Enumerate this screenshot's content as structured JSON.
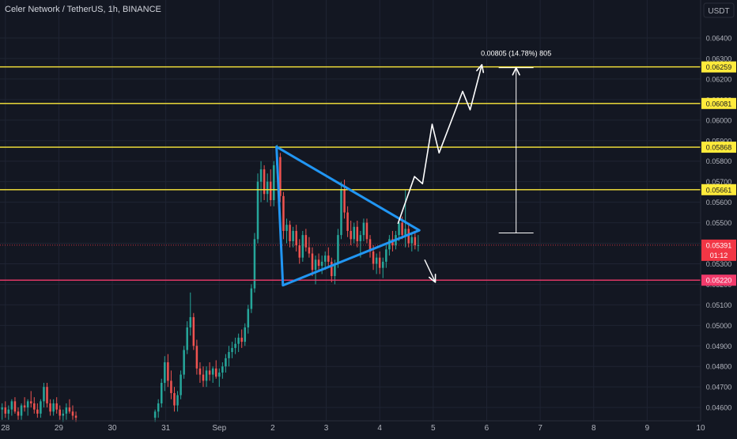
{
  "header": {
    "title": "Celer Network / TetherUS, 1h, BINANCE"
  },
  "chart_data": {
    "type": "candlestick",
    "currency_label": "USDT",
    "y_axis": {
      "ticks": [
        "0.06400",
        "0.06300",
        "0.06200",
        "0.06100",
        "0.06000",
        "0.05900",
        "0.05800",
        "0.05700",
        "0.05600",
        "0.05500",
        "0.05400",
        "0.05300",
        "0.05200",
        "0.05100",
        "0.05000",
        "0.04900",
        "0.04800",
        "0.04700",
        "0.04600"
      ],
      "tick_values": [
        0.064,
        0.063,
        0.062,
        0.061,
        0.06,
        0.059,
        0.058,
        0.057,
        0.056,
        0.055,
        0.054,
        0.053,
        0.052,
        0.051,
        0.05,
        0.049,
        0.048,
        0.047,
        0.046
      ],
      "range": [
        0.04535,
        0.06585
      ]
    },
    "x_axis": {
      "ticks": [
        "28",
        "29",
        "30",
        "31",
        "Sep",
        "2",
        "3",
        "4",
        "5",
        "6",
        "7",
        "8",
        "9",
        "10"
      ],
      "tick_positions": [
        -4,
        -3,
        -2,
        -1,
        0,
        1,
        2,
        3,
        4,
        5,
        6,
        7,
        8,
        9
      ],
      "range": [
        -4.1,
        9.0
      ]
    },
    "levels": [
      {
        "label": "0.06259",
        "value": 0.06259,
        "color": "#ffeb3b"
      },
      {
        "label": "0.06081",
        "value": 0.06081,
        "color": "#ffeb3b"
      },
      {
        "label": "0.05868",
        "value": 0.05868,
        "color": "#ffeb3b"
      },
      {
        "label": "0.05661",
        "value": 0.05661,
        "color": "#ffeb3b"
      },
      {
        "label": "0.05220",
        "value": 0.0522,
        "color": "#f23a6b"
      }
    ],
    "current_price": {
      "label": "0.05391",
      "value": 0.05391,
      "countdown": "01:12",
      "color": "#f23645"
    },
    "triangle": {
      "color": "#2196f3",
      "points": [
        [
          1.07,
          0.0587
        ],
        [
          3.74,
          0.05463
        ],
        [
          1.19,
          0.05195
        ]
      ]
    },
    "projection_up": {
      "color": "#ffffff",
      "points": [
        [
          3.34,
          0.05495
        ],
        [
          3.65,
          0.05725
        ],
        [
          3.8,
          0.0569
        ],
        [
          3.98,
          0.0598
        ],
        [
          4.11,
          0.0584
        ],
        [
          4.55,
          0.0614
        ],
        [
          4.69,
          0.0605
        ],
        [
          4.91,
          0.0627
        ]
      ]
    },
    "projection_down": {
      "color": "#ffffff",
      "points": [
        [
          3.84,
          0.0532
        ],
        [
          4.04,
          0.0521
        ]
      ]
    },
    "measure": {
      "label": "0.00805 (14.78%) 805",
      "x": 5.55,
      "from": 0.0545,
      "to": 0.06255
    },
    "colors": {
      "up": "#26a69a",
      "down": "#ef5350",
      "background": "#131722",
      "grid": "#1f2433",
      "text": "#d1d4dc"
    },
    "candles": [
      {
        "t": -4.06,
        "o": 0.0459,
        "h": 0.0462,
        "l": 0.0454,
        "c": 0.046
      },
      {
        "t": -4.0,
        "o": 0.046,
        "h": 0.0463,
        "l": 0.0455,
        "c": 0.0457
      },
      {
        "t": -3.94,
        "o": 0.0457,
        "h": 0.0461,
        "l": 0.0454,
        "c": 0.0459
      },
      {
        "t": -3.88,
        "o": 0.0459,
        "h": 0.0464,
        "l": 0.0456,
        "c": 0.0463
      },
      {
        "t": -3.82,
        "o": 0.0463,
        "h": 0.0465,
        "l": 0.0457,
        "c": 0.0458
      },
      {
        "t": -3.76,
        "o": 0.0458,
        "h": 0.046,
        "l": 0.0454,
        "c": 0.0456
      },
      {
        "t": -3.7,
        "o": 0.0456,
        "h": 0.0462,
        "l": 0.0454,
        "c": 0.0461
      },
      {
        "t": -3.64,
        "o": 0.0461,
        "h": 0.0465,
        "l": 0.0458,
        "c": 0.046
      },
      {
        "t": -3.58,
        "o": 0.046,
        "h": 0.0464,
        "l": 0.0456,
        "c": 0.0463
      },
      {
        "t": -3.52,
        "o": 0.0463,
        "h": 0.0468,
        "l": 0.046,
        "c": 0.0462
      },
      {
        "t": -3.46,
        "o": 0.0462,
        "h": 0.0465,
        "l": 0.0457,
        "c": 0.0459
      },
      {
        "t": -3.4,
        "o": 0.0459,
        "h": 0.0462,
        "l": 0.0455,
        "c": 0.0457
      },
      {
        "t": -3.34,
        "o": 0.0457,
        "h": 0.0464,
        "l": 0.0455,
        "c": 0.0463
      },
      {
        "t": -3.28,
        "o": 0.0463,
        "h": 0.0472,
        "l": 0.046,
        "c": 0.047
      },
      {
        "t": -3.22,
        "o": 0.047,
        "h": 0.0472,
        "l": 0.046,
        "c": 0.0462
      },
      {
        "t": -3.16,
        "o": 0.0462,
        "h": 0.0464,
        "l": 0.0456,
        "c": 0.0458
      },
      {
        "t": -3.1,
        "o": 0.0458,
        "h": 0.0464,
        "l": 0.0456,
        "c": 0.0462
      },
      {
        "t": -3.04,
        "o": 0.0462,
        "h": 0.0465,
        "l": 0.0457,
        "c": 0.0459
      },
      {
        "t": -2.98,
        "o": 0.0459,
        "h": 0.0461,
        "l": 0.0454,
        "c": 0.0456
      },
      {
        "t": -2.92,
        "o": 0.0456,
        "h": 0.0459,
        "l": 0.0453,
        "c": 0.0457
      },
      {
        "t": -2.86,
        "o": 0.0457,
        "h": 0.0462,
        "l": 0.0454,
        "c": 0.046
      },
      {
        "t": -2.8,
        "o": 0.046,
        "h": 0.0464,
        "l": 0.0457,
        "c": 0.0458
      },
      {
        "t": -2.74,
        "o": 0.0458,
        "h": 0.0461,
        "l": 0.0454,
        "c": 0.0456
      },
      {
        "t": -2.68,
        "o": 0.0456,
        "h": 0.0458,
        "l": 0.0453,
        "c": 0.0455
      },
      {
        "t": -1.2,
        "o": 0.0455,
        "h": 0.0459,
        "l": 0.0453,
        "c": 0.0458
      },
      {
        "t": -1.14,
        "o": 0.0458,
        "h": 0.0464,
        "l": 0.0455,
        "c": 0.0462
      },
      {
        "t": -1.08,
        "o": 0.0462,
        "h": 0.0474,
        "l": 0.046,
        "c": 0.0472
      },
      {
        "t": -1.02,
        "o": 0.0472,
        "h": 0.0485,
        "l": 0.0468,
        "c": 0.0482
      },
      {
        "t": -0.96,
        "o": 0.0482,
        "h": 0.0486,
        "l": 0.047,
        "c": 0.0473
      },
      {
        "t": -0.9,
        "o": 0.0473,
        "h": 0.0478,
        "l": 0.0464,
        "c": 0.0467
      },
      {
        "t": -0.84,
        "o": 0.0467,
        "h": 0.047,
        "l": 0.0458,
        "c": 0.0461
      },
      {
        "t": -0.78,
        "o": 0.0461,
        "h": 0.0468,
        "l": 0.0458,
        "c": 0.0466
      },
      {
        "t": -0.72,
        "o": 0.0466,
        "h": 0.0478,
        "l": 0.0464,
        "c": 0.0476
      },
      {
        "t": -0.66,
        "o": 0.0476,
        "h": 0.049,
        "l": 0.0474,
        "c": 0.0488
      },
      {
        "t": -0.6,
        "o": 0.0488,
        "h": 0.0502,
        "l": 0.0486,
        "c": 0.0499
      },
      {
        "t": -0.54,
        "o": 0.0499,
        "h": 0.0516,
        "l": 0.0495,
        "c": 0.0504
      },
      {
        "t": -0.48,
        "o": 0.0504,
        "h": 0.0506,
        "l": 0.0488,
        "c": 0.049
      },
      {
        "t": -0.42,
        "o": 0.049,
        "h": 0.0493,
        "l": 0.0476,
        "c": 0.0479
      },
      {
        "t": -0.36,
        "o": 0.0479,
        "h": 0.0482,
        "l": 0.0472,
        "c": 0.0476
      },
      {
        "t": -0.3,
        "o": 0.0476,
        "h": 0.048,
        "l": 0.047,
        "c": 0.0473
      },
      {
        "t": -0.24,
        "o": 0.0473,
        "h": 0.048,
        "l": 0.047,
        "c": 0.0478
      },
      {
        "t": -0.18,
        "o": 0.0478,
        "h": 0.0482,
        "l": 0.0473,
        "c": 0.0476
      },
      {
        "t": -0.12,
        "o": 0.0476,
        "h": 0.048,
        "l": 0.0472,
        "c": 0.0479
      },
      {
        "t": -0.06,
        "o": 0.0479,
        "h": 0.0483,
        "l": 0.0474,
        "c": 0.0475
      },
      {
        "t": 0.0,
        "o": 0.0475,
        "h": 0.0479,
        "l": 0.047,
        "c": 0.0477
      },
      {
        "t": 0.06,
        "o": 0.0477,
        "h": 0.0482,
        "l": 0.0474,
        "c": 0.048
      },
      {
        "t": 0.12,
        "o": 0.048,
        "h": 0.0486,
        "l": 0.0477,
        "c": 0.0484
      },
      {
        "t": 0.18,
        "o": 0.0484,
        "h": 0.049,
        "l": 0.048,
        "c": 0.0487
      },
      {
        "t": 0.24,
        "o": 0.0487,
        "h": 0.0492,
        "l": 0.0484,
        "c": 0.0489
      },
      {
        "t": 0.3,
        "o": 0.0489,
        "h": 0.0494,
        "l": 0.0486,
        "c": 0.0491
      },
      {
        "t": 0.36,
        "o": 0.0491,
        "h": 0.0496,
        "l": 0.0487,
        "c": 0.0494
      },
      {
        "t": 0.42,
        "o": 0.0494,
        "h": 0.0498,
        "l": 0.0489,
        "c": 0.0492
      },
      {
        "t": 0.48,
        "o": 0.0492,
        "h": 0.0501,
        "l": 0.049,
        "c": 0.0499
      },
      {
        "t": 0.54,
        "o": 0.0499,
        "h": 0.051,
        "l": 0.0496,
        "c": 0.0508
      },
      {
        "t": 0.6,
        "o": 0.0508,
        "h": 0.052,
        "l": 0.0506,
        "c": 0.0518
      },
      {
        "t": 0.66,
        "o": 0.0518,
        "h": 0.0545,
        "l": 0.0516,
        "c": 0.0542
      },
      {
        "t": 0.72,
        "o": 0.0542,
        "h": 0.0574,
        "l": 0.054,
        "c": 0.057
      },
      {
        "t": 0.78,
        "o": 0.057,
        "h": 0.058,
        "l": 0.056,
        "c": 0.0576
      },
      {
        "t": 0.84,
        "o": 0.0576,
        "h": 0.0578,
        "l": 0.0561,
        "c": 0.0564
      },
      {
        "t": 0.9,
        "o": 0.0564,
        "h": 0.0574,
        "l": 0.056,
        "c": 0.057
      },
      {
        "t": 0.96,
        "o": 0.057,
        "h": 0.0576,
        "l": 0.0558,
        "c": 0.0561
      },
      {
        "t": 1.02,
        "o": 0.0561,
        "h": 0.058,
        "l": 0.0558,
        "c": 0.0578
      },
      {
        "t": 1.08,
        "o": 0.0578,
        "h": 0.0588,
        "l": 0.0574,
        "c": 0.0582
      },
      {
        "t": 1.14,
        "o": 0.0582,
        "h": 0.0584,
        "l": 0.056,
        "c": 0.0563
      },
      {
        "t": 1.2,
        "o": 0.0563,
        "h": 0.0565,
        "l": 0.0542,
        "c": 0.0546
      },
      {
        "t": 1.26,
        "o": 0.0546,
        "h": 0.0552,
        "l": 0.054,
        "c": 0.0549
      },
      {
        "t": 1.32,
        "o": 0.0549,
        "h": 0.0551,
        "l": 0.0538,
        "c": 0.0541
      },
      {
        "t": 1.38,
        "o": 0.0541,
        "h": 0.0548,
        "l": 0.0538,
        "c": 0.0546
      },
      {
        "t": 1.44,
        "o": 0.0546,
        "h": 0.0549,
        "l": 0.0536,
        "c": 0.0539
      },
      {
        "t": 1.5,
        "o": 0.0539,
        "h": 0.0542,
        "l": 0.053,
        "c": 0.0533
      },
      {
        "t": 1.56,
        "o": 0.0533,
        "h": 0.0546,
        "l": 0.0531,
        "c": 0.0544
      },
      {
        "t": 1.62,
        "o": 0.0544,
        "h": 0.0547,
        "l": 0.0536,
        "c": 0.0538
      },
      {
        "t": 1.68,
        "o": 0.0538,
        "h": 0.0543,
        "l": 0.0533,
        "c": 0.0535
      },
      {
        "t": 1.74,
        "o": 0.0535,
        "h": 0.0538,
        "l": 0.0524,
        "c": 0.0527
      },
      {
        "t": 1.8,
        "o": 0.0527,
        "h": 0.0534,
        "l": 0.052,
        "c": 0.0532
      },
      {
        "t": 1.86,
        "o": 0.0532,
        "h": 0.0535,
        "l": 0.0526,
        "c": 0.0529
      },
      {
        "t": 1.92,
        "o": 0.0529,
        "h": 0.0534,
        "l": 0.0525,
        "c": 0.0531
      },
      {
        "t": 1.98,
        "o": 0.0531,
        "h": 0.0536,
        "l": 0.0527,
        "c": 0.0534
      },
      {
        "t": 2.04,
        "o": 0.0534,
        "h": 0.0538,
        "l": 0.0529,
        "c": 0.0531
      },
      {
        "t": 2.1,
        "o": 0.0531,
        "h": 0.0533,
        "l": 0.0521,
        "c": 0.0524
      },
      {
        "t": 2.16,
        "o": 0.0524,
        "h": 0.0532,
        "l": 0.052,
        "c": 0.053
      },
      {
        "t": 2.22,
        "o": 0.053,
        "h": 0.0547,
        "l": 0.0528,
        "c": 0.0544
      },
      {
        "t": 2.28,
        "o": 0.0544,
        "h": 0.057,
        "l": 0.0542,
        "c": 0.0566
      },
      {
        "t": 2.34,
        "o": 0.0566,
        "h": 0.0571,
        "l": 0.0552,
        "c": 0.0555
      },
      {
        "t": 2.4,
        "o": 0.0555,
        "h": 0.0558,
        "l": 0.0543,
        "c": 0.0546
      },
      {
        "t": 2.46,
        "o": 0.0546,
        "h": 0.0551,
        "l": 0.0539,
        "c": 0.0542
      },
      {
        "t": 2.52,
        "o": 0.0542,
        "h": 0.055,
        "l": 0.054,
        "c": 0.0548
      },
      {
        "t": 2.58,
        "o": 0.0548,
        "h": 0.0551,
        "l": 0.0538,
        "c": 0.0541
      },
      {
        "t": 2.64,
        "o": 0.0541,
        "h": 0.0546,
        "l": 0.0533,
        "c": 0.0544
      },
      {
        "t": 2.7,
        "o": 0.0544,
        "h": 0.0552,
        "l": 0.0541,
        "c": 0.055
      },
      {
        "t": 2.76,
        "o": 0.055,
        "h": 0.0552,
        "l": 0.054,
        "c": 0.0542
      },
      {
        "t": 2.82,
        "o": 0.0542,
        "h": 0.0544,
        "l": 0.0533,
        "c": 0.0536
      },
      {
        "t": 2.88,
        "o": 0.0536,
        "h": 0.0539,
        "l": 0.0527,
        "c": 0.053
      },
      {
        "t": 2.94,
        "o": 0.053,
        "h": 0.0535,
        "l": 0.0525,
        "c": 0.0533
      },
      {
        "t": 3.0,
        "o": 0.0533,
        "h": 0.0536,
        "l": 0.0525,
        "c": 0.0528
      },
      {
        "t": 3.06,
        "o": 0.0528,
        "h": 0.0533,
        "l": 0.0523,
        "c": 0.0531
      },
      {
        "t": 3.12,
        "o": 0.0531,
        "h": 0.0539,
        "l": 0.0528,
        "c": 0.0537
      },
      {
        "t": 3.18,
        "o": 0.0537,
        "h": 0.0544,
        "l": 0.0534,
        "c": 0.0542
      },
      {
        "t": 3.24,
        "o": 0.0542,
        "h": 0.0546,
        "l": 0.0536,
        "c": 0.0539
      },
      {
        "t": 3.3,
        "o": 0.0539,
        "h": 0.0546,
        "l": 0.0537,
        "c": 0.0544
      },
      {
        "t": 3.36,
        "o": 0.0544,
        "h": 0.0552,
        "l": 0.0541,
        "c": 0.055
      },
      {
        "t": 3.42,
        "o": 0.055,
        "h": 0.0553,
        "l": 0.0542,
        "c": 0.0544
      },
      {
        "t": 3.48,
        "o": 0.0544,
        "h": 0.0566,
        "l": 0.0538,
        "c": 0.0547
      },
      {
        "t": 3.54,
        "o": 0.0547,
        "h": 0.055,
        "l": 0.0538,
        "c": 0.054
      },
      {
        "t": 3.6,
        "o": 0.054,
        "h": 0.0545,
        "l": 0.0536,
        "c": 0.0543
      },
      {
        "t": 3.66,
        "o": 0.0543,
        "h": 0.0546,
        "l": 0.0537,
        "c": 0.0539
      },
      {
        "t": 3.72,
        "o": 0.0539,
        "h": 0.0544,
        "l": 0.0536,
        "c": 0.05391
      }
    ]
  }
}
